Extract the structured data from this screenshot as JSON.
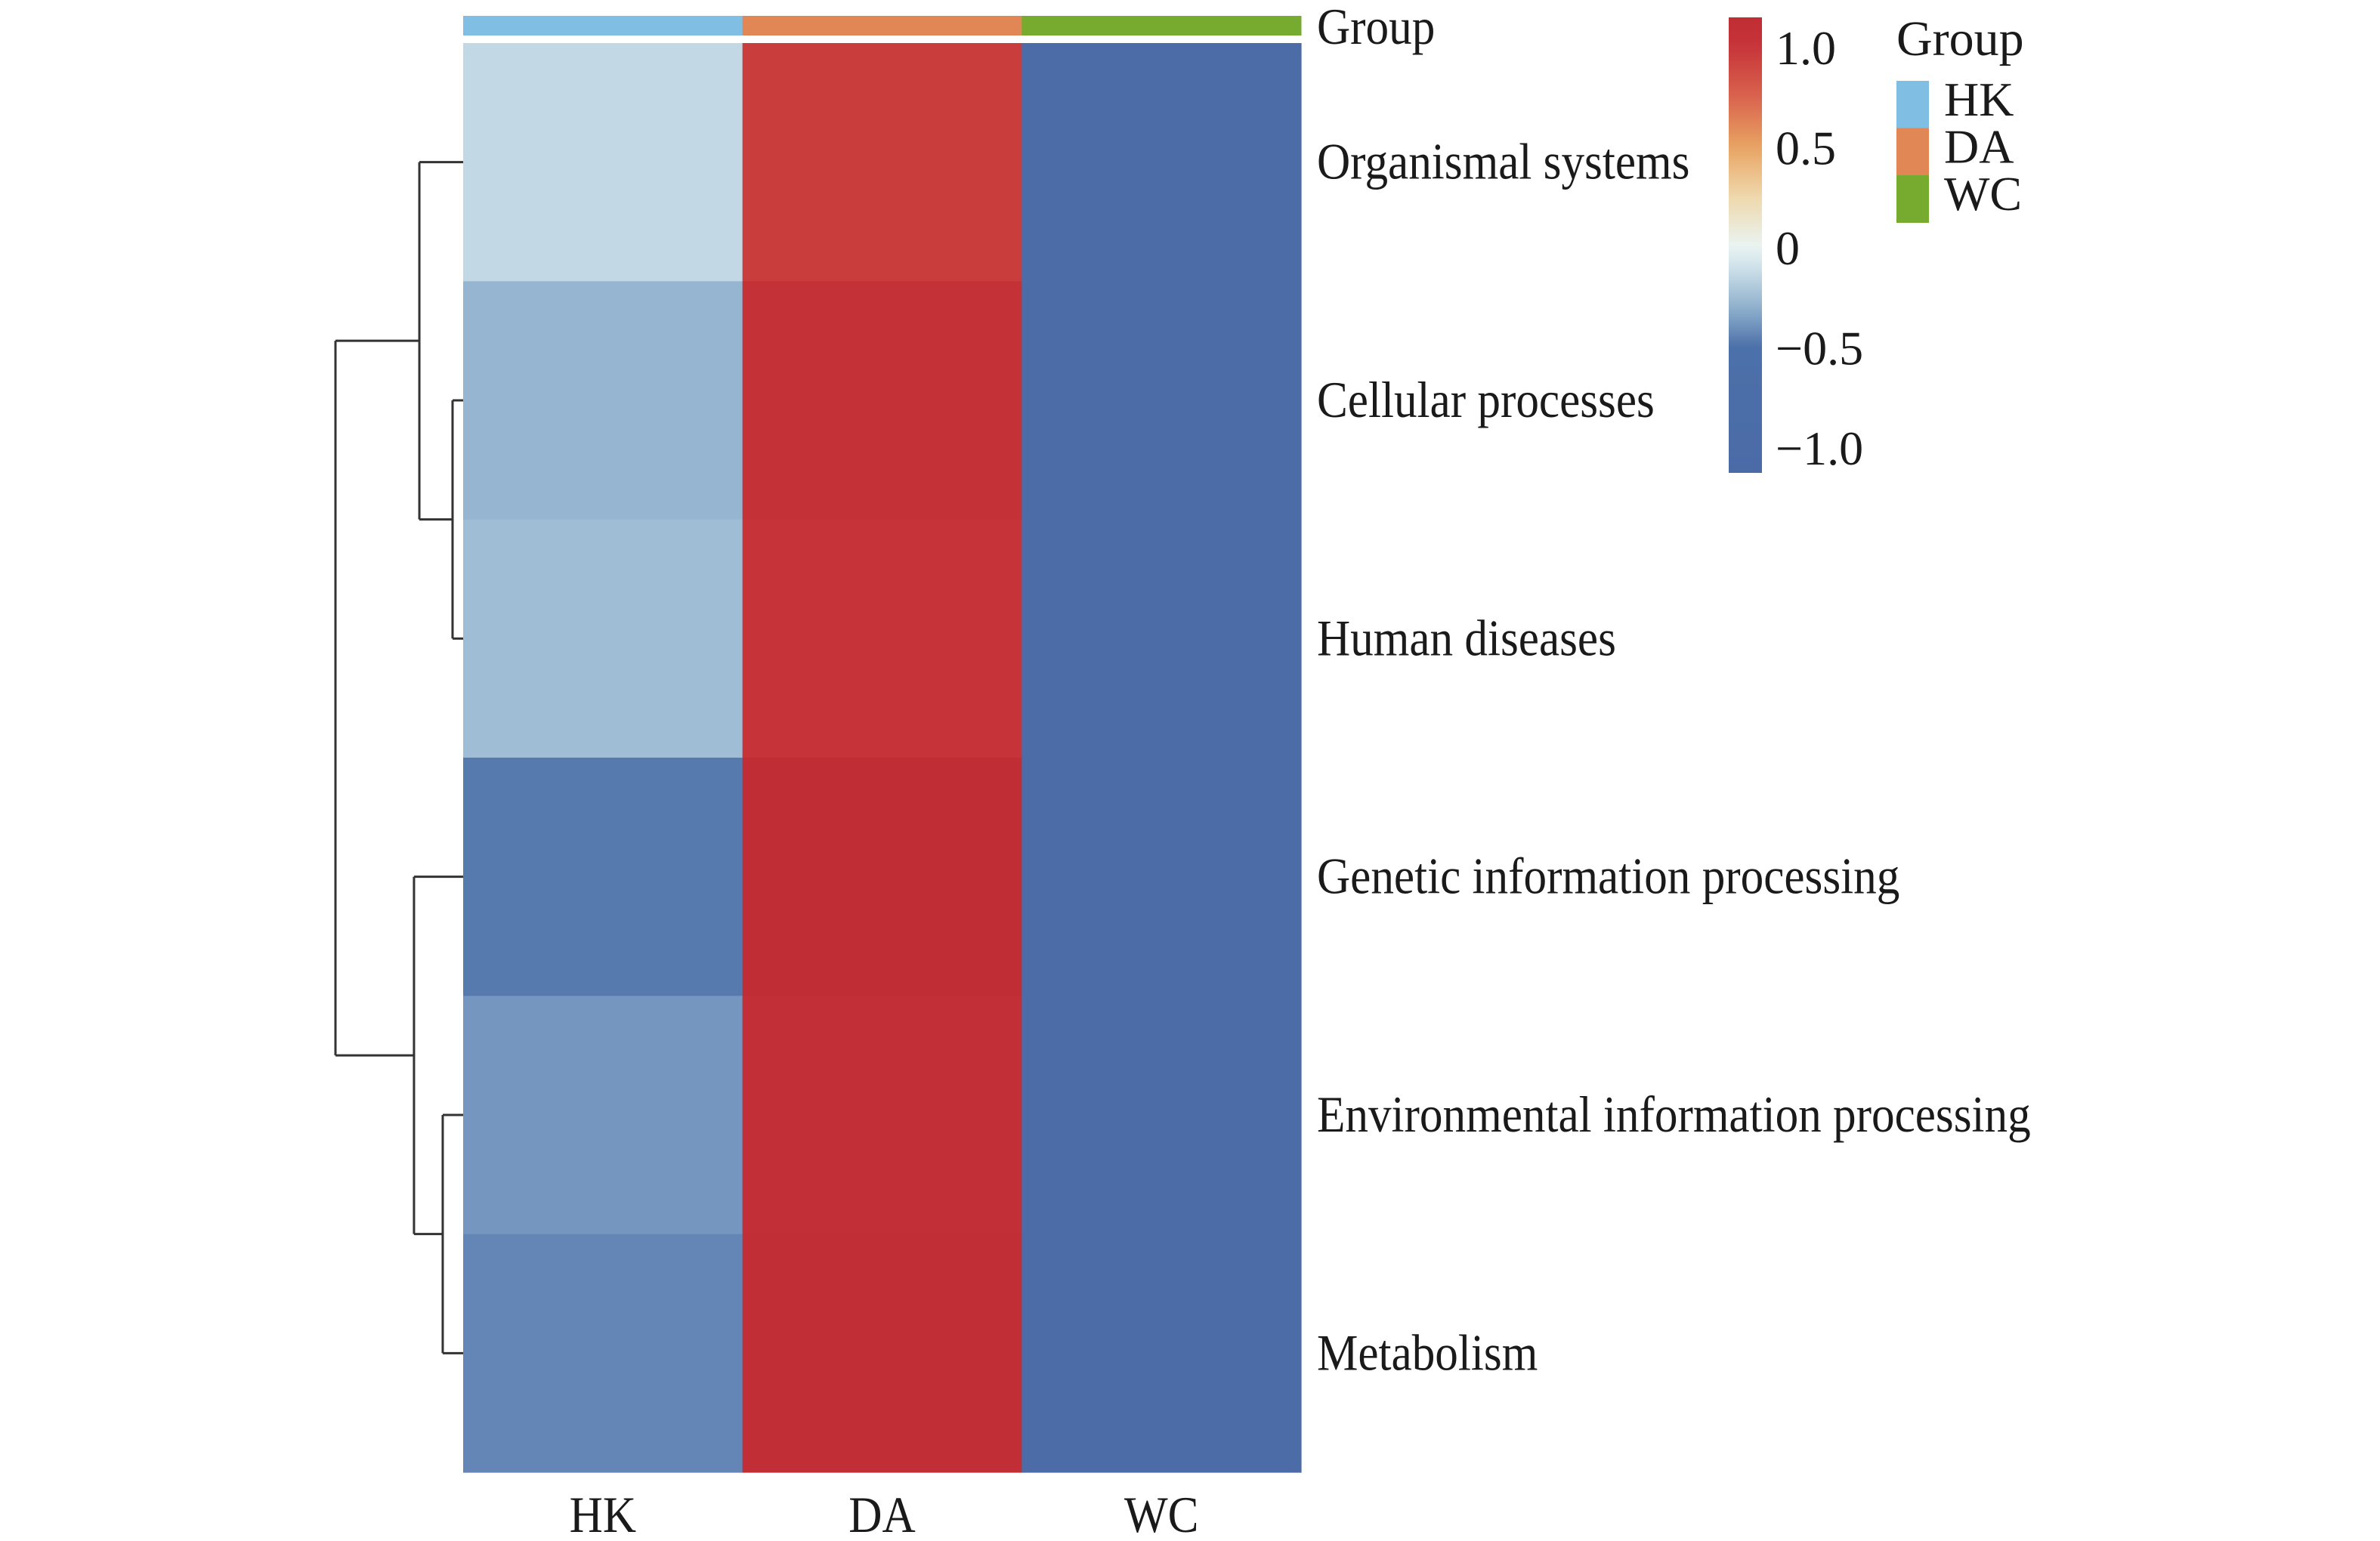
{
  "chart_data": {
    "type": "heatmap",
    "title": "",
    "columns": [
      "HK",
      "DA",
      "WC"
    ],
    "rows": [
      "Organismal systems",
      "Cellular processes",
      "Human diseases",
      "Genetic information processing",
      "Environmental information processing",
      "Metabolism"
    ],
    "values": [
      [
        -0.14,
        0.96,
        -1.0
      ],
      [
        -0.28,
        1.06,
        -1.0
      ],
      [
        -0.25,
        1.03,
        -1.0
      ],
      [
        -0.47,
        1.15,
        -1.0
      ],
      [
        -0.38,
        1.1,
        -1.0
      ],
      [
        -0.43,
        1.12,
        -1.0
      ]
    ],
    "column_annotation": {
      "label": "Group",
      "values": [
        "HK",
        "DA",
        "WC"
      ]
    },
    "group_legend": {
      "title": "Group",
      "entries": [
        {
          "label": "HK",
          "color": "#80bfe3"
        },
        {
          "label": "DA",
          "color": "#e08755"
        },
        {
          "label": "WC",
          "color": "#76ab2f"
        }
      ]
    },
    "colorbar": {
      "range": [
        -1.125,
        1.15
      ],
      "ticks": [
        1.0,
        0.5,
        0,
        -0.5,
        -1.0
      ],
      "tick_labels": [
        "1.0",
        "0.5",
        "0",
        "−0.5",
        "−1.0"
      ],
      "colormap_stops": [
        [
          -1.2,
          "#4a6aa6"
        ],
        [
          -0.5,
          "#4c70a9"
        ],
        [
          -0.3,
          "#8fb0cd"
        ],
        [
          -0.12,
          "#c8dde7"
        ],
        [
          0.0,
          "#e9f4f3"
        ],
        [
          0.25,
          "#efd9ae"
        ],
        [
          0.5,
          "#e8a463"
        ],
        [
          0.75,
          "#d9644e"
        ],
        [
          1.0,
          "#c7353a"
        ],
        [
          1.2,
          "#bd2a32"
        ]
      ]
    },
    "row_dendrogram": {
      "height": 1.0,
      "children": [
        {
          "height": 0.343,
          "children": [
            {
              "leaf": 0
            },
            {
              "height": 0.083,
              "children": [
                {
                  "leaf": 1
                },
                {
                  "leaf": 2
                }
              ]
            }
          ]
        },
        {
          "height": 0.385,
          "children": [
            {
              "leaf": 3
            },
            {
              "height": 0.16,
              "children": [
                {
                  "leaf": 4
                },
                {
                  "leaf": 5
                }
              ]
            }
          ]
        }
      ]
    },
    "xlabel": "",
    "ylabel": "",
    "grid": false,
    "legend_position": "top-right"
  }
}
